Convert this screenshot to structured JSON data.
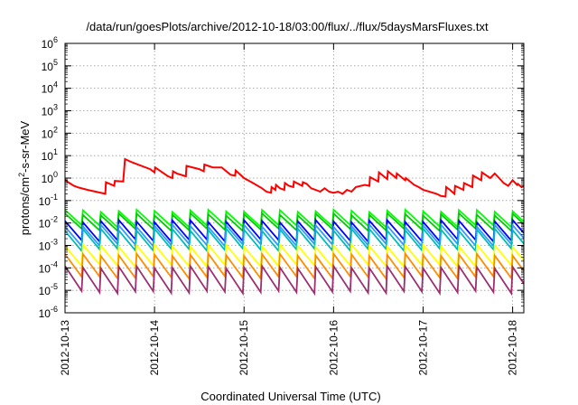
{
  "chart_data": {
    "type": "line",
    "title": "/data/run/goesPlots/archive/2012-10-18/03:00/flux/../flux/5daysMarsFluxes.txt",
    "xlabel": "Coordinated Universal Time (UTC)",
    "ylabel": "protons/cm²-s-sr-MeV",
    "y_scale": "log",
    "ylim": [
      1e-06,
      1000000.0
    ],
    "xlim": [
      "2012-10-13T00:00",
      "2012-10-18T03:00"
    ],
    "grid": true,
    "legend": "none",
    "x_ticks": [
      "2012-10-13",
      "2012-10-14",
      "2012-10-15",
      "2012-10-16",
      "2012-10-17",
      "2012-10-18"
    ],
    "y_ticks": [
      {
        "base": "10",
        "exp": "-6"
      },
      {
        "base": "10",
        "exp": "-5"
      },
      {
        "base": "10",
        "exp": "-4"
      },
      {
        "base": "10",
        "exp": "-3"
      },
      {
        "base": "10",
        "exp": "-2"
      },
      {
        "base": "10",
        "exp": "-1"
      },
      {
        "base": "10",
        "exp": "0"
      },
      {
        "base": "10",
        "exp": "1"
      },
      {
        "base": "10",
        "exp": "2"
      },
      {
        "base": "10",
        "exp": "3"
      },
      {
        "base": "10",
        "exp": "4"
      },
      {
        "base": "10",
        "exp": "5"
      },
      {
        "base": "10",
        "exp": "6"
      }
    ],
    "series": [
      {
        "color": "#ff0000",
        "x": [
          "2012-10-13T00:00",
          "2012-10-13T02:24",
          "2012-10-13T03:36",
          "2012-10-13T06:00",
          "2012-10-13T10:48",
          "2012-10-13T10:58",
          "2012-10-13T13:12",
          "2012-10-13T13:22",
          "2012-10-13T15:36",
          "2012-10-13T16:05",
          "2012-10-13T18:00",
          "2012-10-13T22:48",
          "2012-10-14T00:00",
          "2012-10-14T00:10",
          "2012-10-14T03:36",
          "2012-10-14T04:48",
          "2012-10-14T04:58",
          "2012-10-14T06:00",
          "2012-10-14T08:24",
          "2012-10-14T08:34",
          "2012-10-14T12:00",
          "2012-10-14T13:12",
          "2012-10-14T13:22",
          "2012-10-14T15:36",
          "2012-10-14T18:00",
          "2012-10-14T20:24",
          "2012-10-14T21:36",
          "2012-10-14T21:46",
          "2012-10-15T00:00",
          "2012-10-15T02:24",
          "2012-10-15T04:48",
          "2012-10-15T06:00",
          "2012-10-15T07:12",
          "2012-10-15T07:22",
          "2012-10-15T08:24",
          "2012-10-15T08:34",
          "2012-10-15T09:36",
          "2012-10-15T10:48",
          "2012-10-15T10:58",
          "2012-10-15T12:00",
          "2012-10-15T13:12",
          "2012-10-15T13:22",
          "2012-10-15T15:36",
          "2012-10-15T15:46",
          "2012-10-15T16:48",
          "2012-10-15T18:00",
          "2012-10-15T19:12",
          "2012-10-15T20:24",
          "2012-10-15T21:36",
          "2012-10-15T22:48",
          "2012-10-16T00:00",
          "2012-10-16T01:12",
          "2012-10-16T02:24",
          "2012-10-16T03:36",
          "2012-10-16T04:48",
          "2012-10-16T06:00",
          "2012-10-16T08:24",
          "2012-10-16T09:36",
          "2012-10-16T09:46",
          "2012-10-16T12:00",
          "2012-10-16T12:10",
          "2012-10-16T14:24",
          "2012-10-16T14:34",
          "2012-10-16T16:48",
          "2012-10-16T16:58",
          "2012-10-16T19:12",
          "2012-10-16T19:22",
          "2012-10-16T21:36",
          "2012-10-16T22:48",
          "2012-10-17T00:00",
          "2012-10-17T03:36",
          "2012-10-17T04:48",
          "2012-10-17T06:00",
          "2012-10-17T06:10",
          "2012-10-17T07:12",
          "2012-10-17T08:24",
          "2012-10-17T08:34",
          "2012-10-17T10:48",
          "2012-10-17T10:58",
          "2012-10-17T13:12",
          "2012-10-17T13:22",
          "2012-10-17T15:36",
          "2012-10-17T15:46",
          "2012-10-17T18:00",
          "2012-10-17T19:12",
          "2012-10-17T20:24",
          "2012-10-17T21:36",
          "2012-10-17T22:48",
          "2012-10-18T00:00",
          "2012-10-18T01:12",
          "2012-10-18T01:22",
          "2012-10-18T02:24",
          "2012-10-18T03:00"
        ],
        "y": [
          0.8,
          0.45,
          0.38,
          0.3,
          0.2,
          0.65,
          0.45,
          0.75,
          0.7,
          7.0,
          5.0,
          2.5,
          1.8,
          3.0,
          1.2,
          1.0,
          2.0,
          1.6,
          1.2,
          3.5,
          2.5,
          2.0,
          4.0,
          3.0,
          3.0,
          1.4,
          1.3,
          2.2,
          1.0,
          0.6,
          0.35,
          0.25,
          0.22,
          0.4,
          0.3,
          0.5,
          0.35,
          0.3,
          0.6,
          0.45,
          0.4,
          0.7,
          0.45,
          0.65,
          0.55,
          0.35,
          0.3,
          0.25,
          0.35,
          0.25,
          0.22,
          0.25,
          0.2,
          0.3,
          0.25,
          0.4,
          0.5,
          0.45,
          1.1,
          0.7,
          1.8,
          0.9,
          2.0,
          1.0,
          1.6,
          0.8,
          1.0,
          0.5,
          0.4,
          0.3,
          0.2,
          0.16,
          0.15,
          0.4,
          0.3,
          0.2,
          0.45,
          0.3,
          0.6,
          0.4,
          1.3,
          0.8,
          1.8,
          1.0,
          1.6,
          1.0,
          0.6,
          0.45,
          0.8,
          0.5,
          0.55,
          0.4,
          0.45
        ]
      },
      {
        "color": "#00ff00",
        "base": 0.016,
        "period_hours": 4.8,
        "decay_factor": 2.2
      },
      {
        "color": "#00cc00",
        "base": 0.011,
        "period_hours": 4.8,
        "decay_factor": 2.2
      },
      {
        "color": "#0000ff",
        "base": 0.0045,
        "period_hours": 4.8,
        "decay_factor": 2.7
      },
      {
        "color": "#3399ff",
        "base": 0.0028,
        "period_hours": 4.8,
        "decay_factor": 2.7
      },
      {
        "color": "#00bbbb",
        "base": 0.0018,
        "period_hours": 4.8,
        "decay_factor": 2.8
      },
      {
        "color": "#ffff00",
        "base": 0.00035,
        "period_hours": 4.8,
        "decay_factor": 2.8
      },
      {
        "color": "#ff8c00",
        "base": 0.00012,
        "period_hours": 4.8,
        "decay_factor": 3.2
      },
      {
        "color": "#9b3070",
        "base": 3e-05,
        "period_hours": 4.8,
        "decay_factor": 3.6
      }
    ]
  }
}
